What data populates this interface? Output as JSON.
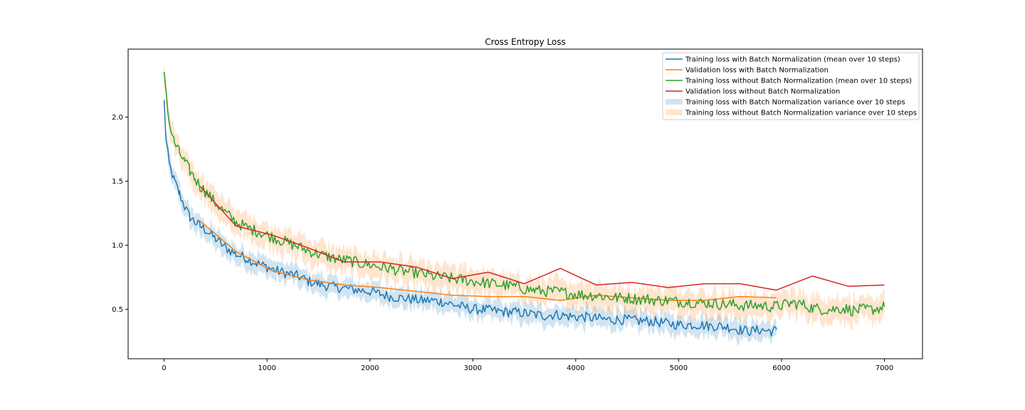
{
  "chart_data": {
    "type": "line",
    "title": "Cross Entropy Loss",
    "xlabel": "",
    "ylabel": "",
    "xlim": [
      -350,
      7370
    ],
    "ylim": [
      0.115,
      2.53
    ],
    "xticks": [
      0,
      1000,
      2000,
      3000,
      4000,
      5000,
      6000,
      7000
    ],
    "yticks": [
      0.5,
      1.0,
      1.5,
      2.0
    ],
    "xtick_labels": [
      "0",
      "1000",
      "2000",
      "3000",
      "4000",
      "5000",
      "6000",
      "7000"
    ],
    "ytick_labels": [
      "0.5",
      "1.0",
      "1.5",
      "2.0"
    ],
    "grid": false,
    "legend_position": "top-right",
    "series": [
      {
        "name": "Training loss with Batch Normalization (mean over 10 steps)",
        "kind": "line",
        "color": "#1f77b4",
        "x": [
          0,
          20,
          50,
          100,
          150,
          200,
          250,
          300,
          350,
          400,
          500,
          600,
          700,
          800,
          900,
          1000,
          1100,
          1200,
          1300,
          1400,
          1500,
          1600,
          1700,
          1800,
          1900,
          2000,
          2100,
          2200,
          2300,
          2400,
          2500,
          2600,
          2700,
          2800,
          2900,
          3000,
          3100,
          3200,
          3300,
          3400,
          3500,
          3600,
          3700,
          3800,
          3900,
          4000,
          4100,
          4200,
          4300,
          4400,
          4500,
          4600,
          4700,
          4800,
          4900,
          5000,
          5100,
          5200,
          5300,
          5400,
          5500,
          5600,
          5700,
          5800,
          5900,
          5950
        ],
        "y": [
          2.12,
          1.8,
          1.63,
          1.5,
          1.4,
          1.3,
          1.22,
          1.18,
          1.15,
          1.12,
          1.05,
          0.98,
          0.93,
          0.9,
          0.86,
          0.83,
          0.8,
          0.78,
          0.76,
          0.72,
          0.7,
          0.68,
          0.67,
          0.66,
          0.65,
          0.64,
          0.62,
          0.6,
          0.59,
          0.58,
          0.57,
          0.57,
          0.56,
          0.54,
          0.52,
          0.5,
          0.5,
          0.49,
          0.48,
          0.48,
          0.47,
          0.46,
          0.45,
          0.46,
          0.45,
          0.44,
          0.44,
          0.43,
          0.42,
          0.42,
          0.42,
          0.41,
          0.41,
          0.4,
          0.39,
          0.38,
          0.38,
          0.38,
          0.37,
          0.37,
          0.36,
          0.34,
          0.33,
          0.34,
          0.33,
          0.34
        ]
      },
      {
        "name": "Validation loss with Batch Normalization",
        "kind": "line",
        "color": "#ff7f0e",
        "x": [
          350,
          700,
          1050,
          1400,
          1750,
          2100,
          2450,
          2800,
          3150,
          3500,
          3850,
          4200,
          4550,
          4900,
          5250,
          5600,
          5950
        ],
        "y": [
          1.19,
          0.95,
          0.8,
          0.73,
          0.69,
          0.67,
          0.64,
          0.61,
          0.6,
          0.6,
          0.57,
          0.61,
          0.59,
          0.57,
          0.57,
          0.6,
          0.59
        ]
      },
      {
        "name": "Training loss without Batch Normalization (mean over 10 steps)",
        "kind": "line",
        "color": "#2ca02c",
        "x": [
          0,
          20,
          50,
          100,
          150,
          200,
          250,
          300,
          350,
          400,
          500,
          600,
          700,
          800,
          900,
          1000,
          1100,
          1200,
          1300,
          1400,
          1500,
          1600,
          1700,
          1800,
          1900,
          2000,
          2100,
          2200,
          2300,
          2400,
          2500,
          2600,
          2700,
          2800,
          2900,
          3000,
          3100,
          3200,
          3300,
          3400,
          3500,
          3600,
          3700,
          3800,
          3900,
          4000,
          4100,
          4200,
          4300,
          4400,
          4500,
          4600,
          4700,
          4800,
          4900,
          5000,
          5100,
          5200,
          5300,
          5400,
          5500,
          5600,
          5700,
          5800,
          5900,
          6000,
          6100,
          6200,
          6300,
          6400,
          6500,
          6600,
          6700,
          6800,
          6900,
          7000
        ],
        "y": [
          2.32,
          2.2,
          1.95,
          1.8,
          1.72,
          1.65,
          1.58,
          1.52,
          1.46,
          1.42,
          1.33,
          1.25,
          1.18,
          1.14,
          1.11,
          1.08,
          1.05,
          1.02,
          0.99,
          0.96,
          0.93,
          0.91,
          0.89,
          0.88,
          0.86,
          0.85,
          0.83,
          0.82,
          0.8,
          0.79,
          0.78,
          0.76,
          0.75,
          0.74,
          0.73,
          0.72,
          0.71,
          0.7,
          0.69,
          0.68,
          0.66,
          0.65,
          0.64,
          0.64,
          0.63,
          0.62,
          0.61,
          0.61,
          0.6,
          0.59,
          0.59,
          0.58,
          0.58,
          0.57,
          0.57,
          0.56,
          0.56,
          0.55,
          0.55,
          0.54,
          0.54,
          0.53,
          0.53,
          0.53,
          0.52,
          0.53,
          0.55,
          0.54,
          0.51,
          0.5,
          0.5,
          0.51,
          0.49,
          0.5,
          0.5,
          0.52
        ]
      },
      {
        "name": "Validation loss without Batch Normalization",
        "kind": "line",
        "color": "#d62728",
        "x": [
          350,
          700,
          1050,
          1400,
          1750,
          2100,
          2450,
          2800,
          3150,
          3500,
          3850,
          4200,
          4550,
          4900,
          5250,
          5600,
          5950,
          6300,
          6650,
          7000
        ],
        "y": [
          1.46,
          1.15,
          1.08,
          0.98,
          0.87,
          0.87,
          0.83,
          0.74,
          0.79,
          0.7,
          0.82,
          0.69,
          0.71,
          0.67,
          0.7,
          0.7,
          0.65,
          0.76,
          0.68,
          0.69
        ]
      },
      {
        "name": "Training loss with Batch Normalization variance over 10 steps",
        "kind": "band",
        "color": "#1f77b4",
        "opacity": 0.2,
        "band_halfwidth": 0.07
      },
      {
        "name": "Training loss without Batch Normalization variance over 10 steps",
        "kind": "band",
        "color": "#ff7f0e",
        "opacity": 0.2,
        "band_halfwidth": 0.09
      }
    ]
  }
}
